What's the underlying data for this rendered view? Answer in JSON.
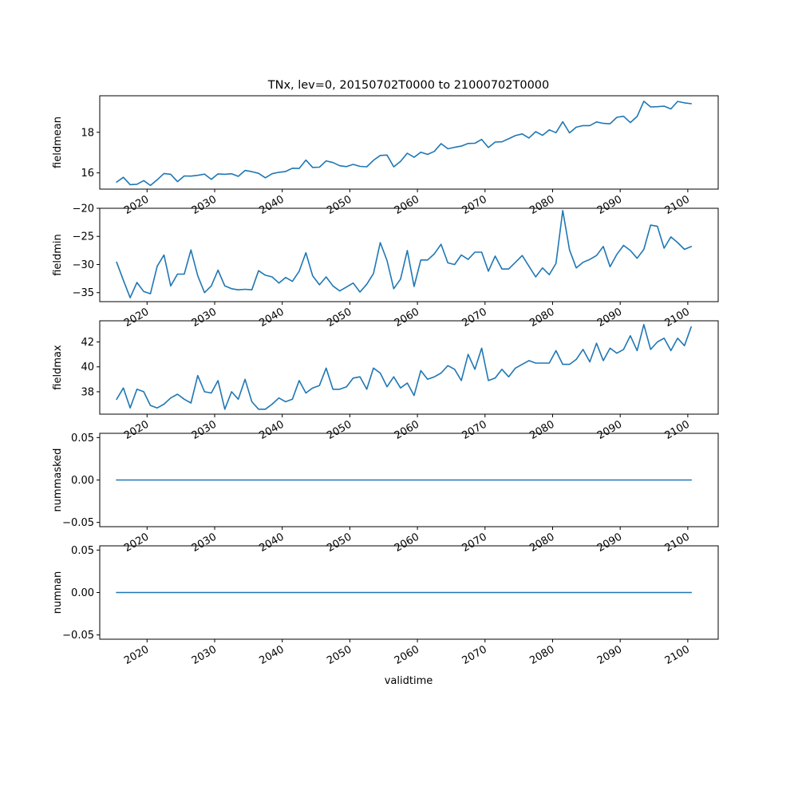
{
  "chart_data": {
    "type": "line",
    "title": "TNx, lev=0, 20150702T0000 to 21000702T0000",
    "xlabel": "validtime",
    "x_start_year": 2015,
    "x_step_years": 1,
    "xlim": [
      2013.0,
      2104.5
    ],
    "x_ticks": [
      2020,
      2030,
      2040,
      2050,
      2060,
      2070,
      2080,
      2090,
      2100
    ],
    "x_tick_labels": [
      "2020",
      "2030",
      "2040",
      "2050",
      "2060",
      "2070",
      "2080",
      "2090",
      "2100"
    ],
    "grid": false,
    "panels": [
      {
        "ylabel": "fieldmean",
        "ylim": [
          15.2,
          19.8
        ],
        "y_ticks": [
          16,
          18
        ],
        "y_tick_labels": [
          "16",
          "18"
        ],
        "values": [
          15.55,
          15.78,
          15.42,
          15.44,
          15.62,
          15.38,
          15.66,
          15.97,
          15.93,
          15.57,
          15.85,
          15.84,
          15.88,
          15.94,
          15.68,
          15.95,
          15.93,
          15.96,
          15.83,
          16.12,
          16.06,
          15.98,
          15.76,
          15.96,
          16.03,
          16.07,
          16.23,
          16.22,
          16.63,
          16.27,
          16.28,
          16.59,
          16.51,
          16.35,
          16.31,
          16.42,
          16.32,
          16.3,
          16.62,
          16.86,
          16.88,
          16.3,
          16.57,
          16.97,
          16.77,
          17.02,
          16.91,
          17.06,
          17.44,
          17.19,
          17.26,
          17.32,
          17.45,
          17.46,
          17.65,
          17.25,
          17.52,
          17.53,
          17.68,
          17.84,
          17.92,
          17.72,
          18.03,
          17.85,
          18.12,
          17.98,
          18.52,
          17.97,
          18.25,
          18.33,
          18.33,
          18.51,
          18.44,
          18.42,
          18.74,
          18.79,
          18.48,
          18.78,
          19.53,
          19.25,
          19.26,
          19.29,
          19.15,
          19.52,
          19.45,
          19.41
        ]
      },
      {
        "ylabel": "fieldmin",
        "ylim": [
          -36.6,
          -20.0
        ],
        "y_ticks": [
          -35,
          -30,
          -25,
          -20
        ],
        "y_tick_labels": [
          "−35",
          "−30",
          "−25",
          "−20"
        ],
        "values": [
          -29.6,
          -32.8,
          -35.9,
          -33.2,
          -34.8,
          -35.2,
          -30.3,
          -28.3,
          -33.8,
          -31.7,
          -31.7,
          -27.4,
          -32.0,
          -35.0,
          -33.8,
          -31.0,
          -33.8,
          -34.3,
          -34.5,
          -34.4,
          -34.5,
          -31.1,
          -31.9,
          -32.2,
          -33.3,
          -32.3,
          -33.0,
          -31.2,
          -27.9,
          -32.0,
          -33.6,
          -32.2,
          -33.8,
          -34.7,
          -34.0,
          -33.3,
          -34.9,
          -33.5,
          -31.6,
          -26.1,
          -29.3,
          -34.3,
          -32.6,
          -27.5,
          -33.9,
          -29.2,
          -29.2,
          -28.1,
          -26.4,
          -29.7,
          -30.0,
          -28.3,
          -29.1,
          -27.8,
          -27.8,
          -31.2,
          -28.5,
          -30.8,
          -30.8,
          -29.6,
          -28.4,
          -30.3,
          -32.2,
          -30.6,
          -31.8,
          -29.8,
          -20.4,
          -27.4,
          -30.6,
          -29.6,
          -29.1,
          -28.4,
          -26.8,
          -30.4,
          -28.2,
          -26.6,
          -27.5,
          -28.9,
          -27.3,
          -23.0,
          -23.2,
          -27.1,
          -25.1,
          -26.1,
          -27.3,
          -26.8
        ]
      },
      {
        "ylabel": "fieldmax",
        "ylim": [
          36.2,
          43.7
        ],
        "y_ticks": [
          38,
          40,
          42
        ],
        "y_tick_labels": [
          "38",
          "40",
          "42"
        ],
        "values": [
          37.4,
          38.3,
          36.7,
          38.2,
          38.0,
          36.9,
          36.7,
          37.0,
          37.5,
          37.8,
          37.4,
          37.1,
          39.3,
          38.0,
          37.9,
          38.9,
          36.6,
          38.0,
          37.4,
          39.0,
          37.2,
          36.6,
          36.6,
          37.0,
          37.5,
          37.2,
          37.4,
          38.9,
          37.9,
          38.3,
          38.5,
          39.9,
          38.2,
          38.2,
          38.4,
          39.1,
          39.2,
          38.2,
          39.9,
          39.5,
          38.4,
          39.2,
          38.3,
          38.7,
          37.7,
          39.7,
          39.0,
          39.2,
          39.5,
          40.1,
          39.8,
          38.9,
          41.0,
          39.8,
          41.5,
          38.9,
          39.1,
          39.8,
          39.2,
          39.9,
          40.2,
          40.5,
          40.3,
          40.3,
          40.3,
          41.3,
          40.2,
          40.2,
          40.6,
          41.4,
          40.4,
          41.9,
          40.5,
          41.5,
          41.1,
          41.4,
          42.5,
          41.3,
          43.4,
          41.4,
          42.0,
          42.3,
          41.3,
          42.3,
          41.7,
          43.2
        ]
      },
      {
        "ylabel": "nummasked",
        "ylim": [
          -0.055,
          0.055
        ],
        "y_ticks": [
          -0.05,
          0.0,
          0.05
        ],
        "y_tick_labels": [
          "−0.05",
          "0.00",
          "0.05"
        ],
        "constant": 0.0
      },
      {
        "ylabel": "numnan",
        "ylim": [
          -0.055,
          0.055
        ],
        "y_ticks": [
          -0.05,
          0.0,
          0.05
        ],
        "y_tick_labels": [
          "−0.05",
          "0.00",
          "0.05"
        ],
        "constant": 0.0
      }
    ]
  }
}
